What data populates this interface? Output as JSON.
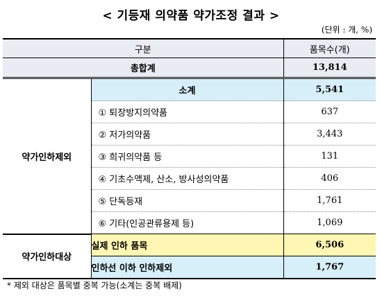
{
  "title": "< 기등재 의약품 약가조정 결과 >",
  "unit": "(단위 : 개, %)",
  "header": {
    "col1": "구분",
    "col2": "품목수(개)"
  },
  "total": {
    "label": "총합계",
    "value": "13,814"
  },
  "exclusion": {
    "category": "약가인하제외",
    "subtotal_label": "소계",
    "subtotal_value": "5,541",
    "items": [
      {
        "label": "① 퇴장방지의약품",
        "value": "637"
      },
      {
        "label": "② 저가의약품",
        "value": "3,443"
      },
      {
        "label": "③ 희귀의약품 등",
        "value": "131"
      },
      {
        "label": "④ 기초수액제, 산소, 방사성의약품",
        "value": "406"
      },
      {
        "label": "⑤ 단독등재",
        "value": "1,761"
      },
      {
        "label": "⑥ 기타(인공관류용제 등)",
        "value": "1,069"
      }
    ]
  },
  "target": {
    "category": "약가인하대상",
    "rows": [
      {
        "label": "실제 인하 품목",
        "value": "6,506"
      },
      {
        "label": "인하선 이하 인하제외",
        "value": "1,767"
      }
    ]
  },
  "note": "* 제외 대상은 품목별 중복 가능(소계는 중복 배제)",
  "colors": {
    "header_bg": "#e9ecf3",
    "blue_bg": "#d7eff8",
    "yellow_bg": "#fff6b3"
  }
}
